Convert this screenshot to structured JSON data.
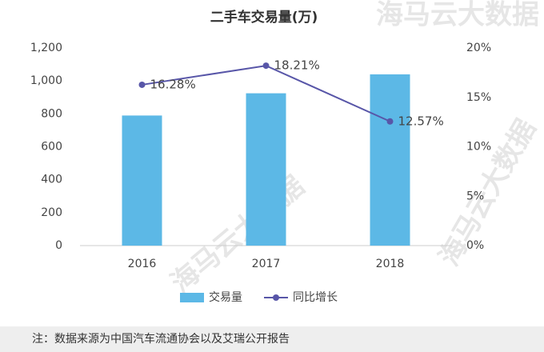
{
  "chart_data": {
    "type": "bar",
    "title": "二手车交易量(万)",
    "categories": [
      "2016",
      "2017",
      "2018"
    ],
    "series": [
      {
        "name": "交易量",
        "type": "bar",
        "color": "#5cb8e6",
        "values": [
          790,
          925,
          1040
        ]
      },
      {
        "name": "同比增长",
        "type": "line",
        "axis": "y2",
        "color": "#5856a8",
        "values": [
          16.28,
          18.21,
          12.57
        ],
        "value_labels": [
          "16.28%",
          "18.21%",
          "12.57%"
        ]
      }
    ],
    "ylim": [
      0,
      1200
    ],
    "yticks": [
      0,
      200,
      400,
      600,
      800,
      {
        "value": 1000,
        "label": "1,000"
      },
      {
        "value": 1200,
        "label": "1,200"
      }
    ],
    "y2lim": [
      0,
      20
    ],
    "y2ticks": [
      {
        "value": 0,
        "label": "0%"
      },
      {
        "value": 5,
        "label": "5%"
      },
      {
        "value": 10,
        "label": "10%"
      },
      {
        "value": 15,
        "label": "15%"
      },
      {
        "value": 20,
        "label": "20%"
      }
    ],
    "grid": false,
    "legend": "bottom",
    "note": "注：数据来源为中国汽车流通协会以及艾瑞公开报告",
    "watermark": "海马云大数据"
  }
}
